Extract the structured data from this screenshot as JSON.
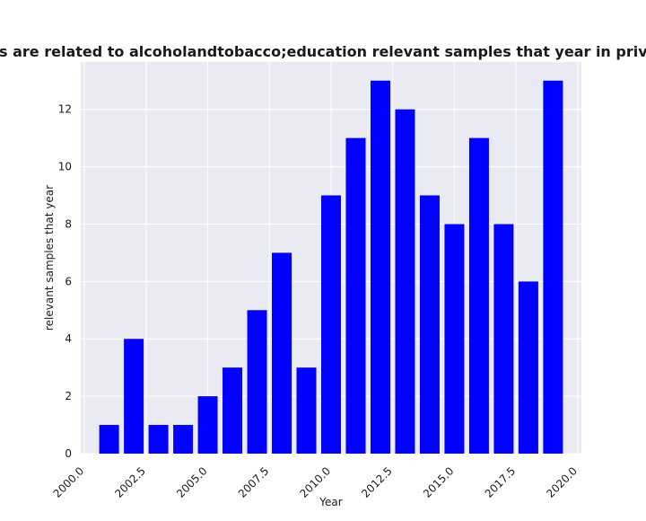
{
  "chart_data": {
    "type": "bar",
    "title": "Categories are related to alcoholandtobacco;education relevant samples that year in privacy policies",
    "xlabel": "Year",
    "ylabel": "relevant samples that year",
    "x": [
      2001,
      2002,
      2003,
      2004,
      2005,
      2006,
      2007,
      2008,
      2009,
      2010,
      2011,
      2012,
      2013,
      2014,
      2015,
      2016,
      2017,
      2018,
      2019
    ],
    "values": [
      1,
      4,
      1,
      1,
      2,
      3,
      5,
      7,
      3,
      9,
      11,
      13,
      12,
      9,
      8,
      11,
      8,
      6,
      13
    ],
    "xlim": [
      1999.85,
      2020.15
    ],
    "ylim": [
      0,
      13.65
    ],
    "xticks": [
      2000.0,
      2002.5,
      2005.0,
      2007.5,
      2010.0,
      2012.5,
      2015.0,
      2017.5,
      2020.0
    ],
    "xtick_labels": [
      "2000.0",
      "2002.5",
      "2005.0",
      "2007.5",
      "2010.0",
      "2012.5",
      "2015.0",
      "2017.5",
      "2020.0"
    ],
    "yticks": [
      0,
      2,
      4,
      6,
      8,
      10,
      12
    ],
    "ytick_labels": [
      "0",
      "2",
      "4",
      "6",
      "8",
      "10",
      "12"
    ],
    "bar_color": "#0000ff",
    "background_color": "#eaeaf2",
    "grid_color": "#ffffff",
    "grid": true,
    "legend": false
  }
}
